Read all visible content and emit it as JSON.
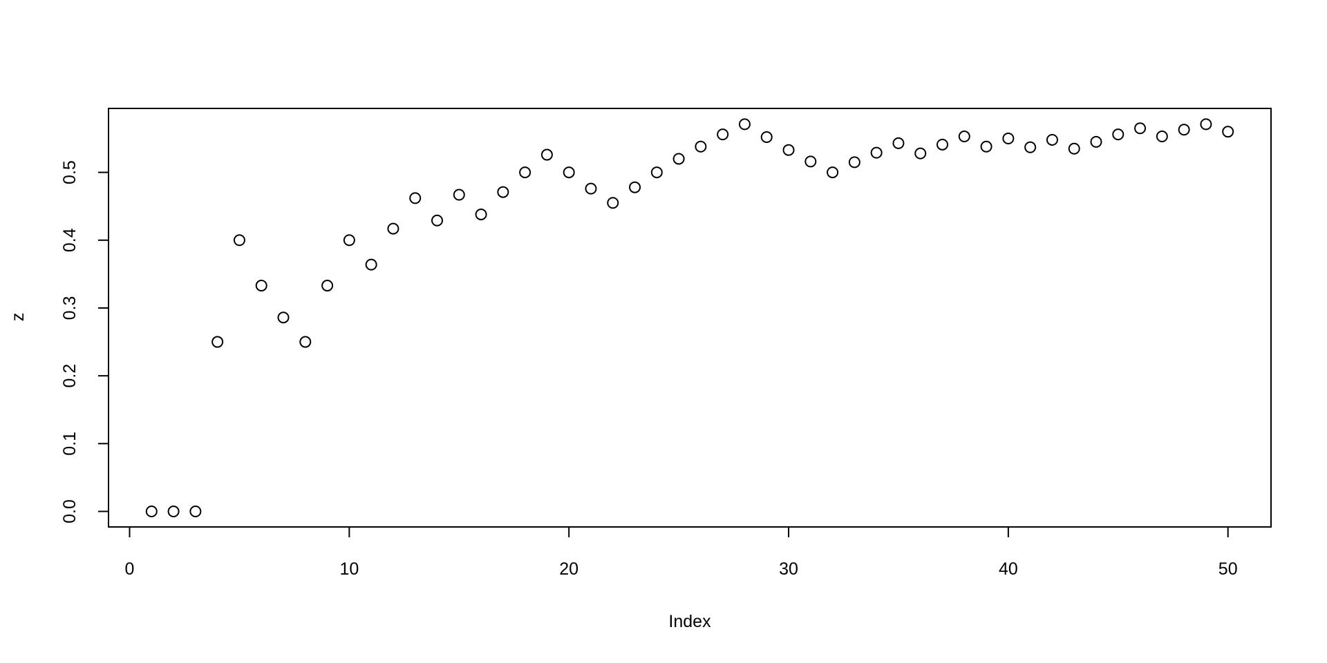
{
  "chart_data": {
    "type": "scatter",
    "title": "",
    "xlabel": "Index",
    "ylabel": "z",
    "xlim": [
      -0.96,
      51.96
    ],
    "ylim": [
      -0.0229,
      0.5943
    ],
    "grid": false,
    "marker": "open-circle",
    "x_ticks": [
      0,
      10,
      20,
      30,
      40,
      50
    ],
    "x_tick_labels": [
      "0",
      "10",
      "20",
      "30",
      "40",
      "50"
    ],
    "y_ticks": [
      0,
      0.1,
      0.2,
      0.3,
      0.4,
      0.5
    ],
    "y_tick_labels": [
      "0.0",
      "0.1",
      "0.2",
      "0.3",
      "0.4",
      "0.5"
    ],
    "x": [
      1,
      2,
      3,
      4,
      5,
      6,
      7,
      8,
      9,
      10,
      11,
      12,
      13,
      14,
      15,
      16,
      17,
      18,
      19,
      20,
      21,
      22,
      23,
      24,
      25,
      26,
      27,
      28,
      29,
      30,
      31,
      32,
      33,
      34,
      35,
      36,
      37,
      38,
      39,
      40,
      41,
      42,
      43,
      44,
      45,
      46,
      47,
      48,
      49,
      50
    ],
    "y": [
      0,
      0,
      0,
      0.25,
      0.4,
      0.333,
      0.286,
      0.25,
      0.333,
      0.4,
      0.364,
      0.417,
      0.462,
      0.429,
      0.467,
      0.438,
      0.471,
      0.5,
      0.526,
      0.5,
      0.476,
      0.455,
      0.478,
      0.5,
      0.52,
      0.538,
      0.556,
      0.571,
      0.552,
      0.533,
      0.516,
      0.5,
      0.515,
      0.529,
      0.543,
      0.528,
      0.541,
      0.553,
      0.538,
      0.55,
      0.537,
      0.548,
      0.535,
      0.545,
      0.556,
      0.565,
      0.553,
      0.563,
      0.571,
      0.56
    ],
    "colors": {
      "marker": "#000000",
      "axis": "#000000",
      "background": "#ffffff"
    }
  }
}
